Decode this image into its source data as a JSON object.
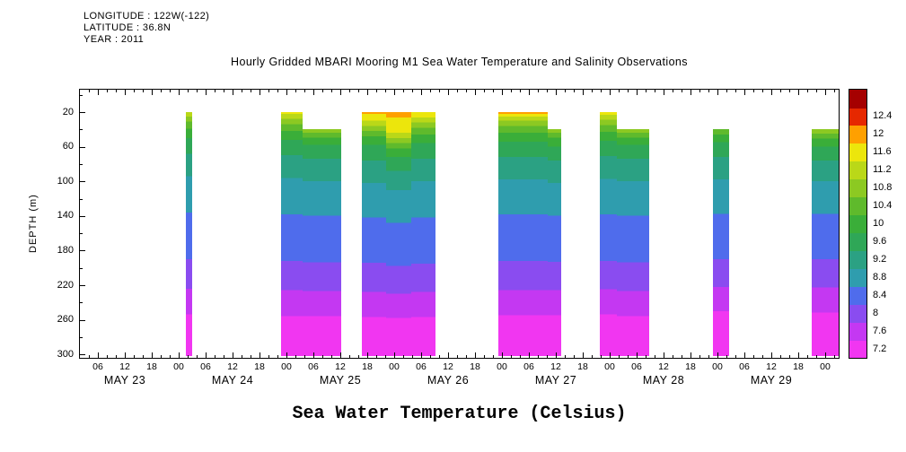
{
  "header": {
    "longitude": "LONGITUDE : 122W(-122)",
    "latitude": "LATITUDE : 36.8N",
    "year": "YEAR : 2011"
  },
  "title": "Hourly Gridded MBARI Mooring M1 Sea Water Temperature and Salinity Observations",
  "bottom_label": "Sea Water Temperature (Celsius)",
  "yaxis": {
    "label": "DEPTH (m)",
    "tick_labels": [
      "20",
      "60",
      "100",
      "140",
      "180",
      "220",
      "260",
      "300"
    ],
    "minor_step_m": 20
  },
  "xaxis": {
    "hour_cycle": [
      "06",
      "12",
      "18",
      "00"
    ],
    "days": [
      "MAY 23",
      "MAY 24",
      "MAY 25",
      "MAY 26",
      "MAY 27",
      "MAY 28",
      "MAY 29"
    ]
  },
  "colorbar": {
    "tick_labels": [
      "7.2",
      "7.6",
      "8",
      "8.4",
      "8.8",
      "9.2",
      "9.6",
      "10",
      "10.4",
      "10.8",
      "11.2",
      "11.6",
      "12",
      "12.4"
    ]
  },
  "chart_data": {
    "type": "heatmap",
    "variable": "sea water temperature (Celsius)",
    "x_axis": "time, hourly, May 23 2011 through May 30 2011",
    "y_axis": "depth (m), surface at top, ticks 20 to 300 m",
    "time_domain_hours_since_may23_00": [
      2,
      171
    ],
    "depth_domain_m": [
      -6,
      304
    ],
    "band_bottom_depth_m": 302,
    "isotherm_levels_c": [
      7.2,
      7.6,
      8,
      8.4,
      8.8,
      9.2,
      9.6,
      10,
      10.4,
      10.8,
      11.2,
      11.6,
      12,
      12.4
    ],
    "palette": [
      {
        "level": "7.2",
        "color": "#f136f1"
      },
      {
        "level": "7.6",
        "color": "#c438f2"
      },
      {
        "level": "8",
        "color": "#8a4cf0"
      },
      {
        "level": "8.4",
        "color": "#4f6cec"
      },
      {
        "level": "8.8",
        "color": "#2f9dae"
      },
      {
        "level": "9.2",
        "color": "#2ba183"
      },
      {
        "level": "9.6",
        "color": "#2fa757"
      },
      {
        "level": "10",
        "color": "#3aae39"
      },
      {
        "level": "10.4",
        "color": "#5fba2c"
      },
      {
        "level": "10.8",
        "color": "#8cc922"
      },
      {
        "level": "11.2",
        "color": "#bad818"
      },
      {
        "level": "11.6",
        "color": "#ece60c"
      },
      {
        "level": "12",
        "color": "#ffa000"
      },
      {
        "level": "12.4",
        "color": "#e62800"
      },
      {
        "level": "over",
        "color": "#a50000"
      }
    ],
    "segments": [
      {
        "time": "May 24 01:30 - 03:00",
        "start_h": 25.6,
        "end_h": 27.0,
        "stops": [
          [
            20,
            "11.2"
          ],
          [
            25,
            "10.8"
          ],
          [
            31,
            "10.4"
          ],
          [
            39,
            "10"
          ],
          [
            50,
            "9.6"
          ],
          [
            68,
            "9.2"
          ],
          [
            94,
            "8.8"
          ],
          [
            136,
            "8.4"
          ],
          [
            190,
            "8"
          ],
          [
            224,
            "7.6"
          ],
          [
            254,
            "7.2"
          ]
        ]
      },
      {
        "time": "May 24 22:45 - May 25 03:30",
        "start_h": 46.8,
        "end_h": 51.5,
        "stops": [
          [
            20,
            "11.6"
          ],
          [
            22,
            "11.2"
          ],
          [
            28,
            "10.8"
          ],
          [
            34,
            "10.4"
          ],
          [
            42,
            "10"
          ],
          [
            52,
            "9.6"
          ],
          [
            70,
            "9.2"
          ],
          [
            96,
            "8.8"
          ],
          [
            138,
            "8.4"
          ],
          [
            192,
            "8"
          ],
          [
            226,
            "7.6"
          ],
          [
            256,
            "7.2"
          ]
        ]
      },
      {
        "time": "May 25 03:30 - 12:15",
        "start_h": 51.5,
        "end_h": 60.2,
        "stops": [
          [
            40,
            "10.8"
          ],
          [
            44,
            "10.4"
          ],
          [
            50,
            "10"
          ],
          [
            58,
            "9.6"
          ],
          [
            74,
            "9.2"
          ],
          [
            100,
            "8.8"
          ],
          [
            140,
            "8.4"
          ],
          [
            194,
            "8"
          ],
          [
            227,
            "7.6"
          ],
          [
            256,
            "7.2"
          ]
        ]
      },
      {
        "time": "May 25 16:45 - 22:15",
        "start_h": 64.8,
        "end_h": 70.2,
        "stops": [
          [
            20,
            "12"
          ],
          [
            22,
            "11.6"
          ],
          [
            30,
            "11.2"
          ],
          [
            36,
            "10.8"
          ],
          [
            42,
            "10.4"
          ],
          [
            48,
            "10"
          ],
          [
            58,
            "9.6"
          ],
          [
            76,
            "9.2"
          ],
          [
            102,
            "8.8"
          ],
          [
            142,
            "8.4"
          ],
          [
            194,
            "8"
          ],
          [
            228,
            "7.6"
          ],
          [
            257,
            "7.2"
          ]
        ]
      },
      {
        "time": "May 25 22:15 - May 26 03:45",
        "start_h": 70.2,
        "end_h": 75.8,
        "stops": [
          [
            20,
            "12"
          ],
          [
            26,
            "11.6"
          ],
          [
            44,
            "11.2"
          ],
          [
            50,
            "10.8"
          ],
          [
            56,
            "10.4"
          ],
          [
            62,
            "10"
          ],
          [
            72,
            "9.6"
          ],
          [
            88,
            "9.2"
          ],
          [
            110,
            "8.8"
          ],
          [
            148,
            "8.4"
          ],
          [
            198,
            "8"
          ],
          [
            230,
            "7.6"
          ],
          [
            258,
            "7.2"
          ]
        ]
      },
      {
        "time": "May 26 03:45 - 09:15",
        "start_h": 75.8,
        "end_h": 81.2,
        "stops": [
          [
            20,
            "11.6"
          ],
          [
            26,
            "11.2"
          ],
          [
            32,
            "10.8"
          ],
          [
            38,
            "10.4"
          ],
          [
            46,
            "10"
          ],
          [
            56,
            "9.6"
          ],
          [
            74,
            "9.2"
          ],
          [
            100,
            "8.8"
          ],
          [
            142,
            "8.4"
          ],
          [
            195,
            "8"
          ],
          [
            228,
            "7.6"
          ],
          [
            257,
            "7.2"
          ]
        ]
      },
      {
        "time": "May 26 23:15 - May 27 10:15",
        "start_h": 95.2,
        "end_h": 106.2,
        "stops": [
          [
            20,
            "12"
          ],
          [
            22,
            "11.6"
          ],
          [
            25,
            "11.2"
          ],
          [
            30,
            "10.8"
          ],
          [
            36,
            "10.4"
          ],
          [
            44,
            "10"
          ],
          [
            54,
            "9.6"
          ],
          [
            72,
            "9.2"
          ],
          [
            98,
            "8.8"
          ],
          [
            138,
            "8.4"
          ],
          [
            192,
            "8"
          ],
          [
            226,
            "7.6"
          ],
          [
            255,
            "7.2"
          ]
        ]
      },
      {
        "time": "May 27 10:15 - 13:15",
        "start_h": 106.2,
        "end_h": 109.2,
        "stops": [
          [
            40,
            "10.8"
          ],
          [
            44,
            "10.4"
          ],
          [
            50,
            "10"
          ],
          [
            60,
            "9.6"
          ],
          [
            76,
            "9.2"
          ],
          [
            102,
            "8.8"
          ],
          [
            140,
            "8.4"
          ],
          [
            193,
            "8"
          ],
          [
            226,
            "7.6"
          ],
          [
            255,
            "7.2"
          ]
        ]
      },
      {
        "time": "May 27 21:45 - May 28 01:30",
        "start_h": 117.8,
        "end_h": 121.6,
        "stops": [
          [
            20,
            "11.6"
          ],
          [
            23,
            "11.2"
          ],
          [
            29,
            "10.8"
          ],
          [
            35,
            "10.4"
          ],
          [
            43,
            "10"
          ],
          [
            53,
            "9.6"
          ],
          [
            71,
            "9.2"
          ],
          [
            97,
            "8.8"
          ],
          [
            138,
            "8.4"
          ],
          [
            192,
            "8"
          ],
          [
            225,
            "7.6"
          ],
          [
            254,
            "7.2"
          ]
        ]
      },
      {
        "time": "May 28 01:30 - 08:45",
        "start_h": 121.6,
        "end_h": 128.8,
        "stops": [
          [
            40,
            "10.8"
          ],
          [
            44,
            "10.4"
          ],
          [
            50,
            "10"
          ],
          [
            58,
            "9.6"
          ],
          [
            74,
            "9.2"
          ],
          [
            100,
            "8.8"
          ],
          [
            140,
            "8.4"
          ],
          [
            194,
            "8"
          ],
          [
            227,
            "7.6"
          ],
          [
            256,
            "7.2"
          ]
        ]
      },
      {
        "time": "May 28 23:00 - May 29 02:30",
        "start_h": 143.0,
        "end_h": 146.6,
        "stops": [
          [
            40,
            "10.4"
          ],
          [
            46,
            "10"
          ],
          [
            55,
            "9.6"
          ],
          [
            72,
            "9.2"
          ],
          [
            98,
            "8.8"
          ],
          [
            138,
            "8.4"
          ],
          [
            190,
            "8"
          ],
          [
            222,
            "7.6"
          ],
          [
            250,
            "7.2"
          ]
        ]
      },
      {
        "time": "May 29 21:00 - May 30 03:00",
        "start_h": 165.0,
        "end_h": 171.0,
        "stops": [
          [
            40,
            "10.8"
          ],
          [
            45,
            "10.4"
          ],
          [
            51,
            "10"
          ],
          [
            60,
            "9.6"
          ],
          [
            76,
            "9.2"
          ],
          [
            100,
            "8.8"
          ],
          [
            138,
            "8.4"
          ],
          [
            190,
            "8"
          ],
          [
            223,
            "7.6"
          ],
          [
            252,
            "7.2"
          ]
        ]
      }
    ]
  }
}
